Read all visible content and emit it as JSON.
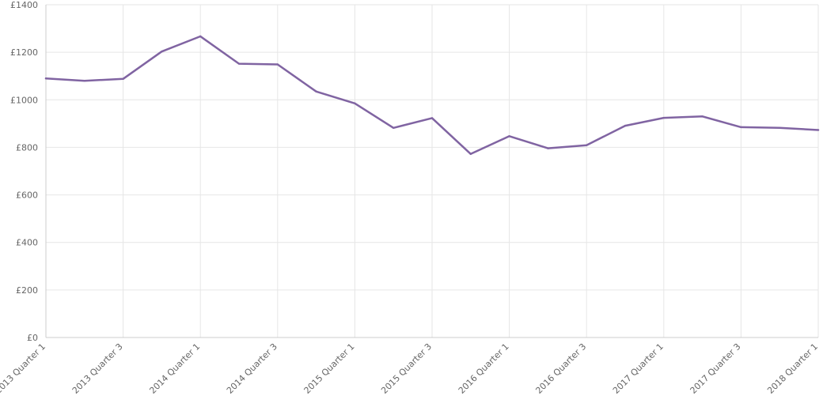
{
  "chart_data": {
    "type": "line",
    "title": "",
    "xlabel": "",
    "ylabel": "",
    "ylim": [
      0,
      1400
    ],
    "y_ticks": [
      0,
      200,
      400,
      600,
      800,
      1000,
      1200,
      1400
    ],
    "y_tick_labels": [
      "£0",
      "£200",
      "£400",
      "£600",
      "£800",
      "£1000",
      "£1200",
      "£1400"
    ],
    "categories": [
      "2013 Quarter 1",
      "2013 Quarter 2",
      "2013 Quarter 3",
      "2013 Quarter 4",
      "2014 Quarter 1",
      "2014 Quarter 2",
      "2014 Quarter 3",
      "2014 Quarter 4",
      "2015 Quarter 1",
      "2015 Quarter 2",
      "2015 Quarter 3",
      "2015 Quarter 4",
      "2016 Quarter 1",
      "2016 Quarter 2",
      "2016 Quarter 3",
      "2016 Quarter 4",
      "2017 Quarter 1",
      "2017 Quarter 2",
      "2017 Quarter 3",
      "2017 Quarter 4",
      "2018 Quarter 1"
    ],
    "x_tick_labels": [
      "2013 Quarter 1",
      "2013 Quarter 3",
      "2014 Quarter 1",
      "2014 Quarter 3",
      "2015 Quarter 1",
      "2015 Quarter 3",
      "2016 Quarter 1",
      "2016 Quarter 3",
      "2017 Quarter 1",
      "2017 Quarter 3",
      "2018 Quarter 1"
    ],
    "series": [
      {
        "color": "#8064a2",
        "values": [
          1090,
          1080,
          1088,
          1203,
          1267,
          1152,
          1149,
          1035,
          985,
          882,
          923,
          772,
          847,
          796,
          809,
          891,
          924,
          930,
          885,
          882,
          873
        ]
      }
    ],
    "grid": true,
    "legend": "none"
  }
}
